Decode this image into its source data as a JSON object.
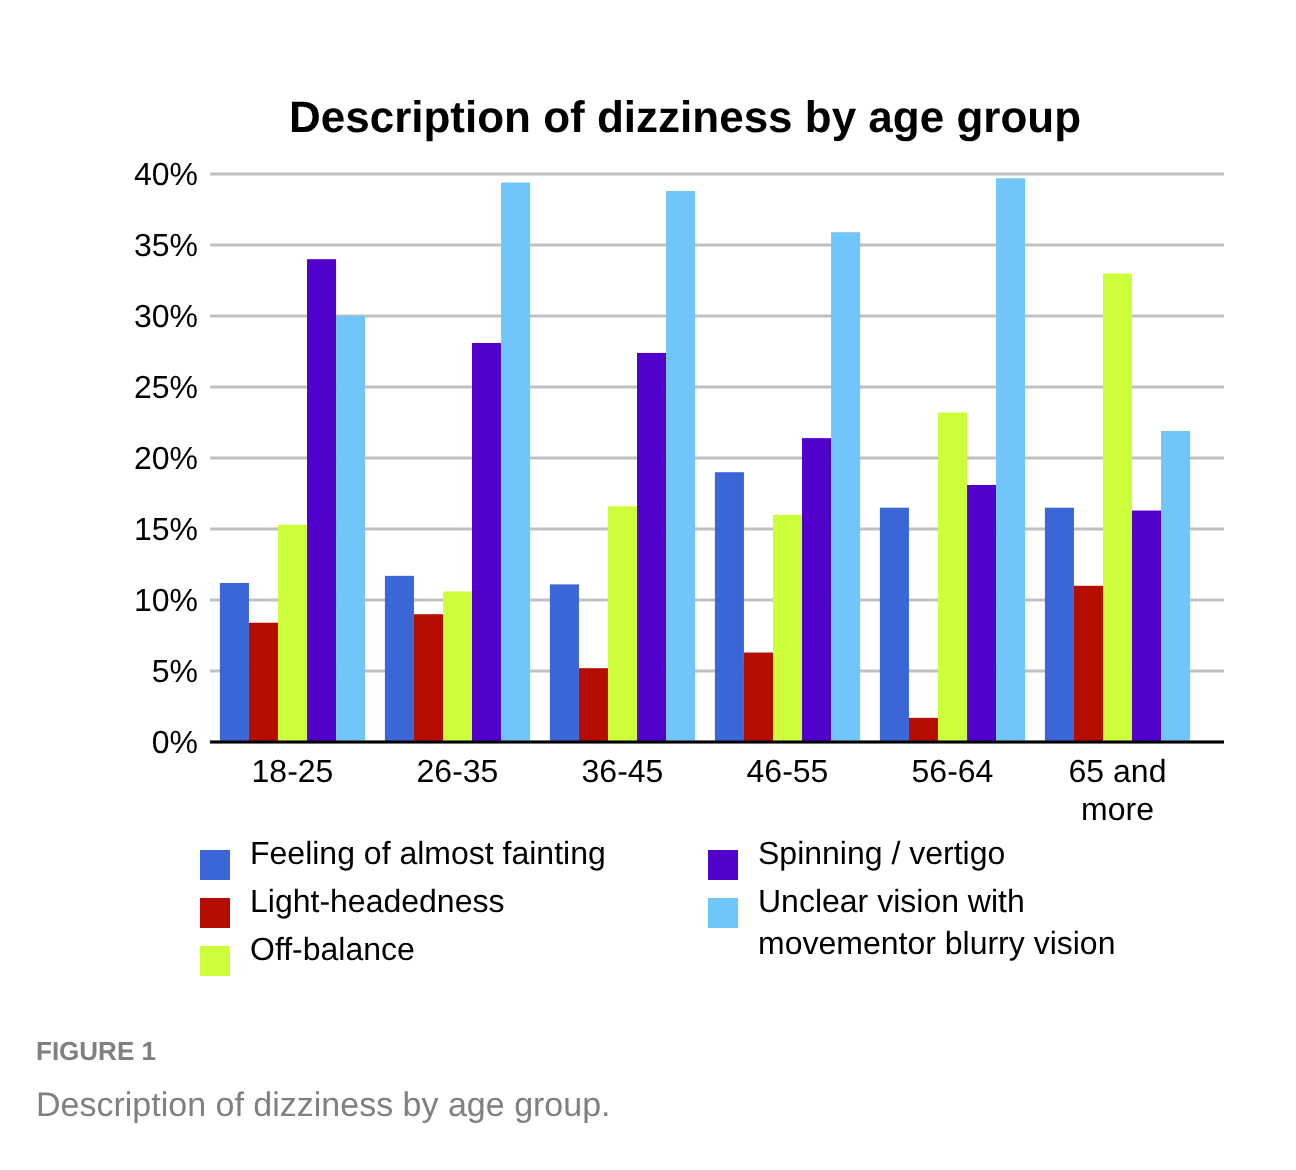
{
  "chart_data": {
    "type": "bar",
    "title": "Description of dizziness by age group",
    "categories": [
      "18-25",
      "26-35",
      "36-45",
      "46-55",
      "56-64",
      "65 and more"
    ],
    "series": [
      {
        "name": "Feeling of almost fainting",
        "color": "#3a66d8",
        "values": [
          11.2,
          11.7,
          11.1,
          19.0,
          16.5,
          16.5
        ]
      },
      {
        "name": "Light-headedness",
        "color": "#b50e00",
        "values": [
          8.4,
          9.0,
          5.2,
          6.3,
          1.7,
          11.0
        ]
      },
      {
        "name": "Off-balance",
        "color": "#ccff3a",
        "values": [
          15.3,
          10.6,
          16.6,
          16.0,
          23.2,
          33.0
        ]
      },
      {
        "name": "Spinning / vertigo",
        "color": "#5200cc",
        "values": [
          34.0,
          28.1,
          27.4,
          21.4,
          18.1,
          16.3
        ]
      },
      {
        "name": "Unclear vision with movementor blurry vision",
        "color": "#70c6fa",
        "values": [
          30.0,
          39.4,
          38.8,
          35.9,
          39.7,
          21.9
        ]
      }
    ],
    "ylim": [
      0,
      40
    ],
    "yticks": [
      {
        "value": 0,
        "label": "0%"
      },
      {
        "value": 5,
        "label": "5%"
      },
      {
        "value": 10,
        "label": "10%"
      },
      {
        "value": 15,
        "label": "15%"
      },
      {
        "value": 20,
        "label": "20%"
      },
      {
        "value": 25,
        "label": "25%"
      },
      {
        "value": 30,
        "label": "30%"
      },
      {
        "value": 35,
        "label": "35%"
      },
      {
        "value": 40,
        "label": "40%"
      }
    ],
    "grid": "y",
    "legend": "bottom",
    "annotations": [
      "FIGURE 1",
      "Description of dizziness by age group."
    ]
  }
}
